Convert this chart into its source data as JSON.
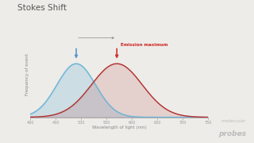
{
  "title": "Stokes Shift",
  "xlabel": "Wavelength of light (nm)",
  "ylabel": "Frequency of event",
  "xlim": [
    400,
    750
  ],
  "xticks": [
    400,
    450,
    500,
    550,
    600,
    650,
    700,
    750
  ],
  "excitation_peak": 490,
  "emission_peak": 570,
  "excitation_sigma": 38,
  "emission_sigma": 50,
  "excitation_color": "#6ab4d8",
  "emission_color": "#b03030",
  "bg_color": "#eeece8",
  "title_color": "#555555",
  "arrow_excitation_color": "#5599cc",
  "arrow_emission_color": "#cc3333",
  "annotation_text": "Emission maximum",
  "annotation_color": "#cc2222",
  "stokes_arrow_color": "#999999",
  "logo_text1": "molecular",
  "logo_text2": "probes",
  "logo_color": "#bbbbbb",
  "axis_color": "#aaaaaa",
  "tick_color": "#999999",
  "label_color": "#888888"
}
